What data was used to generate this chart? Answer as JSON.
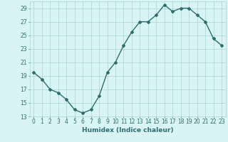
{
  "x": [
    0,
    1,
    2,
    3,
    4,
    5,
    6,
    7,
    8,
    9,
    10,
    11,
    12,
    13,
    14,
    15,
    16,
    17,
    18,
    19,
    20,
    21,
    22,
    23
  ],
  "y": [
    19.5,
    18.5,
    17.0,
    16.5,
    15.5,
    14.0,
    13.5,
    14.0,
    16.0,
    19.5,
    21.0,
    23.5,
    25.5,
    27.0,
    27.0,
    28.0,
    29.5,
    28.5,
    29.0,
    29.0,
    28.0,
    27.0,
    24.5,
    23.5
  ],
  "line_color": "#2e6e6e",
  "marker": "D",
  "marker_size": 2.0,
  "bg_color": "#d9f4f4",
  "grid_color": "#aad4d4",
  "xlabel": "Humidex (Indice chaleur)",
  "xlim": [
    -0.5,
    23.5
  ],
  "ylim": [
    13,
    30
  ],
  "yticks": [
    13,
    15,
    17,
    19,
    21,
    23,
    25,
    27,
    29
  ],
  "xticks": [
    0,
    1,
    2,
    3,
    4,
    5,
    6,
    7,
    8,
    9,
    10,
    11,
    12,
    13,
    14,
    15,
    16,
    17,
    18,
    19,
    20,
    21,
    22,
    23
  ],
  "tick_fontsize": 5.5,
  "xlabel_fontsize": 6.5,
  "line_width": 1.0
}
